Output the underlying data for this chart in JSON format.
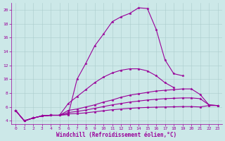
{
  "title": "",
  "xlabel": "Windchill (Refroidissement éolien,°C)",
  "background_color": "#cce8e8",
  "line_color": "#990099",
  "grid_color": "#aacccc",
  "xlim": [
    -0.5,
    23.5
  ],
  "ylim": [
    3.5,
    21.0
  ],
  "xticks": [
    0,
    1,
    2,
    3,
    4,
    5,
    6,
    7,
    8,
    9,
    10,
    11,
    12,
    13,
    14,
    15,
    16,
    17,
    18,
    19,
    20,
    21,
    22,
    23
  ],
  "yticks": [
    4,
    6,
    8,
    10,
    12,
    14,
    16,
    18,
    20
  ],
  "curves": [
    {
      "x": [
        0,
        1,
        2,
        3,
        4,
        5,
        6,
        7,
        8,
        9,
        10,
        11,
        12,
        13,
        14,
        15,
        16,
        17,
        18,
        19,
        20,
        21,
        22,
        23
      ],
      "y": [
        5.5,
        4.0,
        4.4,
        4.7,
        4.8,
        4.8,
        4.9,
        10.0,
        12.3,
        14.8,
        16.5,
        18.3,
        19.0,
        19.5,
        20.3,
        20.2,
        17.2,
        12.8,
        10.8,
        10.5,
        null,
        null,
        null,
        null
      ],
      "has_markers": true
    },
    {
      "x": [
        0,
        1,
        2,
        3,
        4,
        5,
        6,
        7,
        8,
        9,
        10,
        11,
        12,
        13,
        14,
        15,
        16,
        17,
        18,
        19,
        20,
        21,
        22,
        23
      ],
      "y": [
        5.5,
        4.0,
        4.4,
        4.7,
        4.8,
        4.8,
        6.5,
        7.5,
        8.5,
        9.5,
        10.3,
        10.9,
        11.3,
        11.5,
        11.5,
        11.2,
        10.5,
        9.5,
        8.8,
        null,
        null,
        null,
        null,
        null
      ],
      "has_markers": true
    },
    {
      "x": [
        0,
        1,
        2,
        3,
        4,
        5,
        6,
        7,
        8,
        9,
        10,
        11,
        12,
        13,
        14,
        15,
        16,
        17,
        18,
        19,
        20,
        21,
        22,
        23
      ],
      "y": [
        5.5,
        4.0,
        4.4,
        4.7,
        4.8,
        4.8,
        5.5,
        5.7,
        6.0,
        6.3,
        6.7,
        7.0,
        7.4,
        7.7,
        7.9,
        8.1,
        8.3,
        8.4,
        8.5,
        8.6,
        8.6,
        7.8,
        6.3,
        6.2
      ],
      "has_markers": true
    },
    {
      "x": [
        0,
        1,
        2,
        3,
        4,
        5,
        6,
        7,
        8,
        9,
        10,
        11,
        12,
        13,
        14,
        15,
        16,
        17,
        18,
        19,
        20,
        21,
        22,
        23
      ],
      "y": [
        5.5,
        4.0,
        4.4,
        4.7,
        4.8,
        4.8,
        5.2,
        5.35,
        5.55,
        5.8,
        6.05,
        6.3,
        6.5,
        6.7,
        6.85,
        7.0,
        7.1,
        7.2,
        7.25,
        7.3,
        7.3,
        7.2,
        6.3,
        6.2
      ],
      "has_markers": true
    },
    {
      "x": [
        0,
        1,
        2,
        3,
        4,
        5,
        6,
        7,
        8,
        9,
        10,
        11,
        12,
        13,
        14,
        15,
        16,
        17,
        18,
        19,
        20,
        21,
        22,
        23
      ],
      "y": [
        5.5,
        4.0,
        4.4,
        4.7,
        4.8,
        4.8,
        5.0,
        5.05,
        5.15,
        5.3,
        5.45,
        5.6,
        5.7,
        5.8,
        5.88,
        5.93,
        5.97,
        6.0,
        6.02,
        6.05,
        6.05,
        6.0,
        6.2,
        6.2
      ],
      "has_markers": true
    }
  ]
}
